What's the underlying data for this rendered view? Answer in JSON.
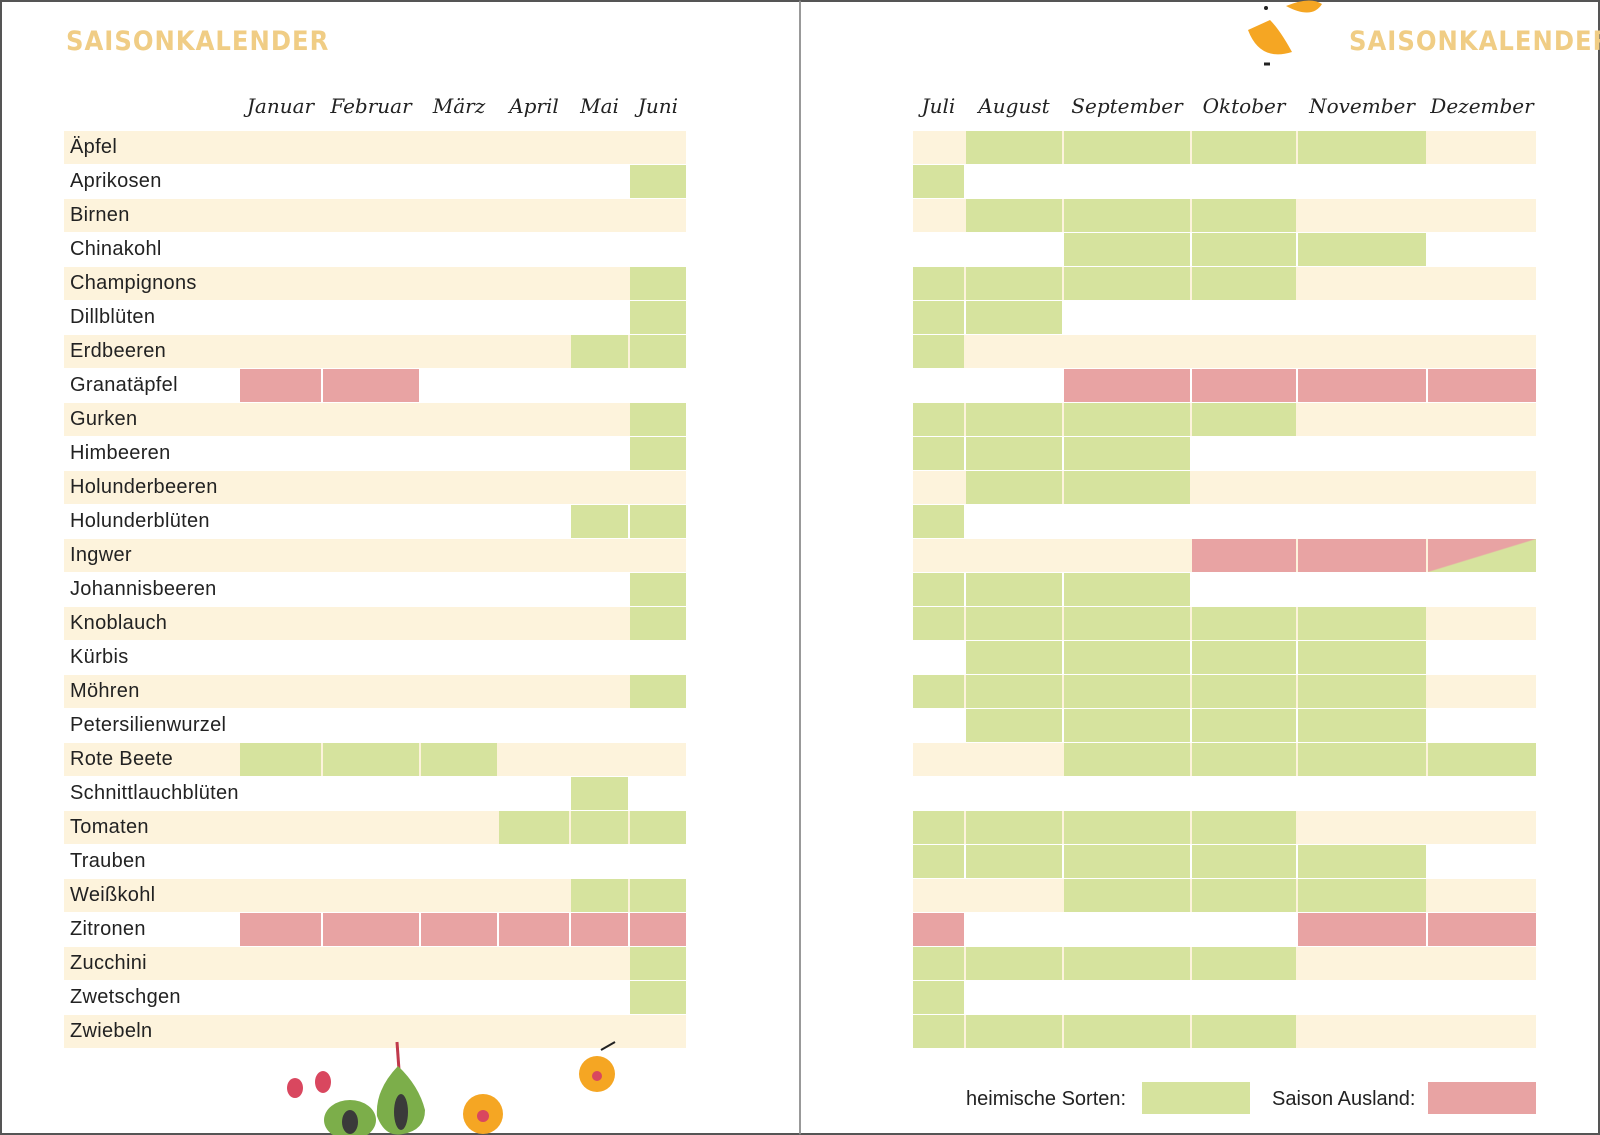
{
  "title_left": "SAISONKALENDER",
  "title_right": "SAISONKALENDER",
  "colors": {
    "heimisch": "#d6e39e",
    "ausland": "#e8a3a3",
    "band": "#fdf3dc",
    "title": "#f0cd85"
  },
  "months": [
    "Januar",
    "Februar",
    "März",
    "April",
    "Mai",
    "Juni",
    "Juli",
    "August",
    "September",
    "Oktober",
    "November",
    "Dezember"
  ],
  "legend": {
    "heimisch": "heimische Sorten:",
    "ausland": "Saison Ausland:"
  },
  "items": [
    {
      "name": "Äpfel",
      "cells": [
        0,
        0,
        0,
        0,
        0,
        0,
        0,
        1,
        1,
        1,
        1,
        0
      ]
    },
    {
      "name": "Aprikosen",
      "cells": [
        0,
        0,
        0,
        0,
        0,
        1,
        1,
        0,
        0,
        0,
        0,
        0
      ]
    },
    {
      "name": "Birnen",
      "cells": [
        0,
        0,
        0,
        0,
        0,
        0,
        0,
        1,
        1,
        1,
        0,
        0
      ]
    },
    {
      "name": "Chinakohl",
      "cells": [
        0,
        0,
        0,
        0,
        0,
        0,
        0,
        0,
        1,
        1,
        1,
        0
      ]
    },
    {
      "name": "Champignons",
      "cells": [
        0,
        0,
        0,
        0,
        0,
        1,
        1,
        1,
        1,
        1,
        0,
        0
      ]
    },
    {
      "name": "Dillblüten",
      "cells": [
        0,
        0,
        0,
        0,
        0,
        1,
        1,
        1,
        0,
        0,
        0,
        0
      ]
    },
    {
      "name": "Erdbeeren",
      "cells": [
        0,
        0,
        0,
        0,
        1,
        1,
        1,
        0,
        0,
        0,
        0,
        0
      ]
    },
    {
      "name": "Granatäpfel",
      "cells": [
        2,
        2,
        0,
        0,
        0,
        0,
        0,
        0,
        2,
        2,
        2,
        2
      ]
    },
    {
      "name": "Gurken",
      "cells": [
        0,
        0,
        0,
        0,
        0,
        1,
        1,
        1,
        1,
        1,
        0,
        0
      ]
    },
    {
      "name": "Himbeeren",
      "cells": [
        0,
        0,
        0,
        0,
        0,
        1,
        1,
        1,
        1,
        0,
        0,
        0
      ]
    },
    {
      "name": "Holunderbeeren",
      "cells": [
        0,
        0,
        0,
        0,
        0,
        0,
        0,
        1,
        1,
        0,
        0,
        0
      ]
    },
    {
      "name": "Holunderblüten",
      "cells": [
        0,
        0,
        0,
        0,
        1,
        1,
        1,
        0,
        0,
        0,
        0,
        0
      ]
    },
    {
      "name": "Ingwer",
      "cells": [
        0,
        0,
        0,
        0,
        0,
        0,
        0,
        0,
        0,
        2,
        2,
        3
      ]
    },
    {
      "name": "Johannisbeeren",
      "cells": [
        0,
        0,
        0,
        0,
        0,
        1,
        1,
        1,
        1,
        0,
        0,
        0
      ]
    },
    {
      "name": "Knoblauch",
      "cells": [
        0,
        0,
        0,
        0,
        0,
        1,
        1,
        1,
        1,
        1,
        1,
        0
      ]
    },
    {
      "name": "Kürbis",
      "cells": [
        0,
        0,
        0,
        0,
        0,
        0,
        0,
        1,
        1,
        1,
        1,
        0
      ]
    },
    {
      "name": "Möhren",
      "cells": [
        0,
        0,
        0,
        0,
        0,
        1,
        1,
        1,
        1,
        1,
        1,
        0
      ]
    },
    {
      "name": "Petersilienwurzel",
      "cells": [
        0,
        0,
        0,
        0,
        0,
        0,
        0,
        1,
        1,
        1,
        1,
        0
      ]
    },
    {
      "name": "Rote Beete",
      "cells": [
        1,
        1,
        1,
        0,
        0,
        0,
        0,
        0,
        1,
        1,
        1,
        1
      ]
    },
    {
      "name": "Schnittlauchblüten",
      "cells": [
        0,
        0,
        0,
        0,
        1,
        0,
        0,
        0,
        0,
        0,
        0,
        0
      ]
    },
    {
      "name": "Tomaten",
      "cells": [
        0,
        0,
        0,
        1,
        1,
        1,
        1,
        1,
        1,
        1,
        0,
        0
      ]
    },
    {
      "name": "Trauben",
      "cells": [
        0,
        0,
        0,
        0,
        0,
        0,
        1,
        1,
        1,
        1,
        1,
        0
      ]
    },
    {
      "name": "Weißkohl",
      "cells": [
        0,
        0,
        0,
        0,
        1,
        1,
        0,
        0,
        1,
        1,
        1,
        0
      ]
    },
    {
      "name": "Zitronen",
      "cells": [
        2,
        2,
        2,
        2,
        2,
        2,
        2,
        0,
        0,
        0,
        2,
        2
      ]
    },
    {
      "name": "Zucchini",
      "cells": [
        0,
        0,
        0,
        0,
        0,
        1,
        1,
        1,
        1,
        1,
        0,
        0
      ]
    },
    {
      "name": "Zwetschgen",
      "cells": [
        0,
        0,
        0,
        0,
        0,
        1,
        1,
        0,
        0,
        0,
        0,
        0
      ]
    },
    {
      "name": "Zwiebeln",
      "cells": [
        0,
        0,
        0,
        0,
        0,
        0,
        1,
        1,
        1,
        1,
        0,
        0
      ]
    }
  ]
}
